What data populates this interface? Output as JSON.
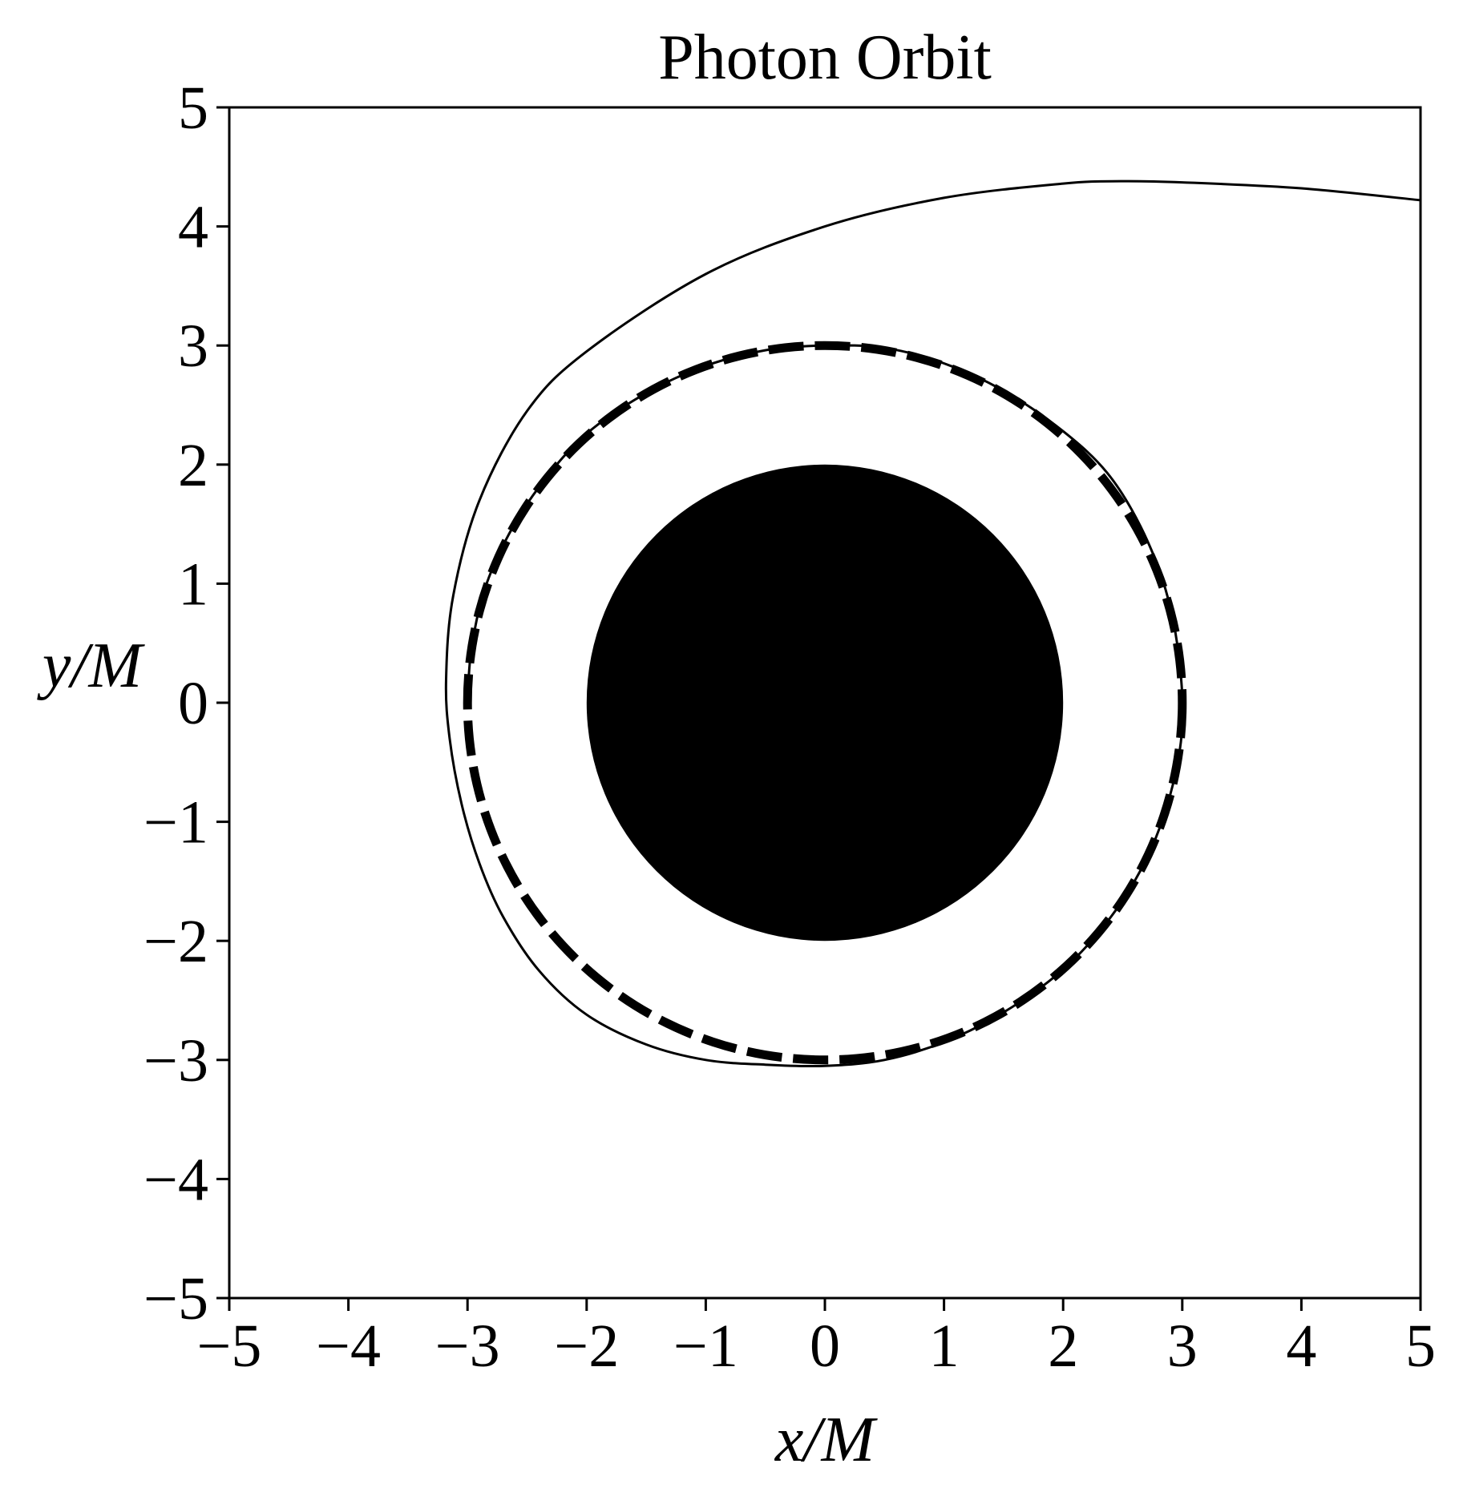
{
  "chart_data": {
    "type": "line",
    "title": "Photon Orbit",
    "xlabel": "x/M",
    "ylabel": "y/M",
    "xlim": [
      -5,
      5
    ],
    "ylim": [
      -5,
      5
    ],
    "xticks": [
      -5,
      -4,
      -3,
      -2,
      -1,
      0,
      1,
      2,
      3,
      4,
      5
    ],
    "yticks": [
      -5,
      -4,
      -3,
      -2,
      -1,
      0,
      1,
      2,
      3,
      4,
      5
    ],
    "x_tick_labels": [
      "−5",
      "−4",
      "−3",
      "−2",
      "−1",
      "0",
      "1",
      "2",
      "3",
      "4",
      "5"
    ],
    "y_tick_labels": [
      "−5",
      "−4",
      "−3",
      "−2",
      "−1",
      "0",
      "1",
      "2",
      "3",
      "4",
      "5"
    ],
    "grid": false,
    "aspect": "equal",
    "legend": "none",
    "shapes": [
      {
        "kind": "filled-disk",
        "center": [
          0,
          0
        ],
        "radius": 2,
        "color": "#000000"
      },
      {
        "kind": "dashed-circle",
        "center": [
          0,
          0
        ],
        "radius": 3,
        "color": "#000000"
      }
    ],
    "series": [
      {
        "style": "solid",
        "color": "#000000",
        "x": [
          5.0,
          4.0,
          3.0,
          2.5,
          2.0,
          1.0,
          0.0,
          -1.0,
          -2.0,
          -2.5,
          -2.9,
          -3.12,
          -3.18,
          -3.15,
          -3.05,
          -2.9,
          -2.7,
          -2.4,
          -2.0,
          -1.5,
          -1.0,
          -0.5,
          0.0,
          0.5,
          1.0,
          1.5,
          2.0,
          2.4,
          2.7,
          2.9,
          3.0,
          2.97,
          2.86,
          2.65,
          2.37,
          2.0,
          1.5,
          1.0,
          0.5,
          0.0,
          -0.5,
          -1.0,
          -1.5,
          -2.0,
          -2.37,
          -2.65,
          -2.86,
          -2.97,
          -3.0
        ],
        "y": [
          4.22,
          4.32,
          4.37,
          4.38,
          4.36,
          4.24,
          4.0,
          3.6,
          2.95,
          2.45,
          1.7,
          0.9,
          0.2,
          -0.3,
          -0.85,
          -1.35,
          -1.8,
          -2.25,
          -2.62,
          -2.87,
          -3.0,
          -3.04,
          -3.05,
          -3.0,
          -2.85,
          -2.6,
          -2.24,
          -1.8,
          -1.31,
          -0.77,
          -0.2,
          0.4,
          0.95,
          1.48,
          1.93,
          2.28,
          2.62,
          2.85,
          2.98,
          3.0,
          2.96,
          2.83,
          2.6,
          2.26,
          1.85,
          1.42,
          0.94,
          0.43,
          0.0
        ]
      }
    ]
  }
}
